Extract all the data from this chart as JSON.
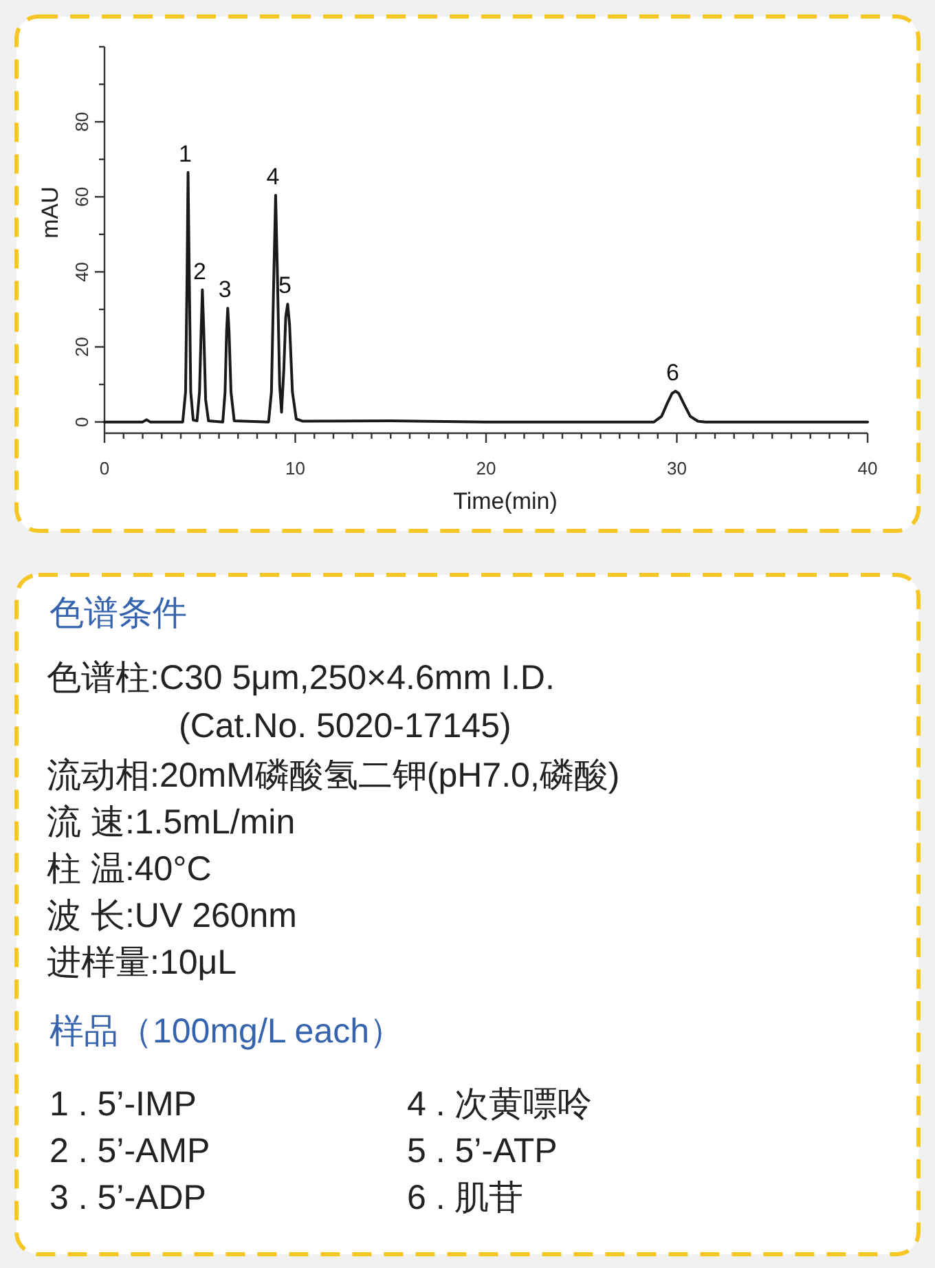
{
  "chart_data": [
    {
      "type": "line",
      "xlabel": "Time(min)",
      "ylabel": "mAU",
      "color": "#1a1a1a",
      "x": [
        0,
        2.0,
        2.2,
        2.4,
        4.1,
        4.25,
        4.33,
        4.38,
        4.44,
        4.52,
        4.65,
        4.85,
        4.98,
        5.07,
        5.13,
        5.2,
        5.3,
        5.45,
        6.2,
        6.32,
        6.4,
        6.46,
        6.53,
        6.63,
        6.8,
        8.6,
        8.75,
        8.88,
        8.97,
        9.06,
        9.18,
        9.28,
        9.4,
        9.5,
        9.6,
        9.7,
        9.85,
        10.05,
        10.4,
        15,
        20,
        28.8,
        29.2,
        29.5,
        29.75,
        29.93,
        30.1,
        30.4,
        30.7,
        31.1,
        31.5,
        40
      ],
      "values": [
        0,
        0,
        0.6,
        0,
        0,
        8,
        40,
        66.5,
        40,
        8,
        0.5,
        0.3,
        8,
        25,
        35.2,
        25,
        6,
        0.3,
        0,
        8,
        24,
        30.3,
        24,
        8,
        0.3,
        0,
        8,
        40,
        60.4,
        40,
        10,
        2.6,
        14,
        28,
        31.4,
        26,
        8,
        0.8,
        0.2,
        0.3,
        0,
        0,
        1.5,
        5,
        7.6,
        8.2,
        7.6,
        4.5,
        1.5,
        0.2,
        0,
        0
      ],
      "xlim": [
        0,
        40
      ],
      "ylim": [
        -3,
        100
      ],
      "xticks": [
        0,
        {
          "value": 1,
          "label": null
        },
        {
          "value": 2,
          "label": null
        },
        {
          "value": 3,
          "label": null
        },
        {
          "value": 4,
          "label": null
        },
        {
          "value": 5,
          "label": null
        },
        {
          "value": 6,
          "label": null
        },
        {
          "value": 7,
          "label": null
        },
        {
          "value": 8,
          "label": null
        },
        {
          "value": 9,
          "label": null
        },
        10,
        {
          "value": 11,
          "label": null
        },
        {
          "value": 12,
          "label": null
        },
        {
          "value": 13,
          "label": null
        },
        {
          "value": 14,
          "label": null
        },
        {
          "value": 15,
          "label": null
        },
        {
          "value": 16,
          "label": null
        },
        {
          "value": 17,
          "label": null
        },
        {
          "value": 18,
          "label": null
        },
        {
          "value": 19,
          "label": null
        },
        20,
        {
          "value": 21,
          "label": null
        },
        {
          "value": 22,
          "label": null
        },
        {
          "value": 23,
          "label": null
        },
        {
          "value": 24,
          "label": null
        },
        {
          "value": 25,
          "label": null
        },
        {
          "value": 26,
          "label": null
        },
        {
          "value": 27,
          "label": null
        },
        {
          "value": 28,
          "label": null
        },
        {
          "value": 29,
          "label": null
        },
        30,
        {
          "value": 31,
          "label": null
        },
        {
          "value": 32,
          "label": null
        },
        {
          "value": 33,
          "label": null
        },
        {
          "value": 34,
          "label": null
        },
        {
          "value": 35,
          "label": null
        },
        {
          "value": 36,
          "label": null
        },
        {
          "value": 37,
          "label": null
        },
        {
          "value": 38,
          "label": null
        },
        {
          "value": 39,
          "label": null
        },
        40
      ],
      "yticks": [
        0,
        {
          "value": 10,
          "label": null
        },
        20,
        {
          "value": 30,
          "label": null
        },
        40,
        {
          "value": 50,
          "label": null
        },
        60,
        {
          "value": 70,
          "label": null
        },
        80,
        {
          "value": 90,
          "label": null
        },
        {
          "value": 100,
          "label": null
        }
      ],
      "annotations": [
        {
          "text": "1",
          "x": 4.38,
          "y": 66.5
        },
        {
          "text": "2",
          "x": 5.13,
          "y": 35.2
        },
        {
          "text": "3",
          "x": 6.46,
          "y": 30.3
        },
        {
          "text": "4",
          "x": 8.97,
          "y": 60.4
        },
        {
          "text": "5",
          "x": 9.6,
          "y": 31.4
        },
        {
          "text": "6",
          "x": 29.93,
          "y": 8.2
        }
      ]
    },
    {
      "type": "other",
      "title": "色谱条件",
      "annotations": [
        "色谱柱:C30 5μm,250×4.6mm I.D.",
        "(Cat.No. 5020-17145)",
        "流动相:20mM磷酸氢二钾(pH7.0,磷酸)",
        "流  速:1.5mL/min",
        "柱  温:40°C",
        "波  长:UV 260nm",
        "进样量:10μL"
      ]
    },
    {
      "type": "other",
      "title": "样品（100mg/L each）",
      "annotations": [
        "1 . 5’-IMP",
        "2 . 5’-AMP",
        "3 . 5’-ADP",
        "4 . 次黄嘌呤",
        "5 . 5’-ATP",
        "6 . 肌苷"
      ]
    }
  ]
}
